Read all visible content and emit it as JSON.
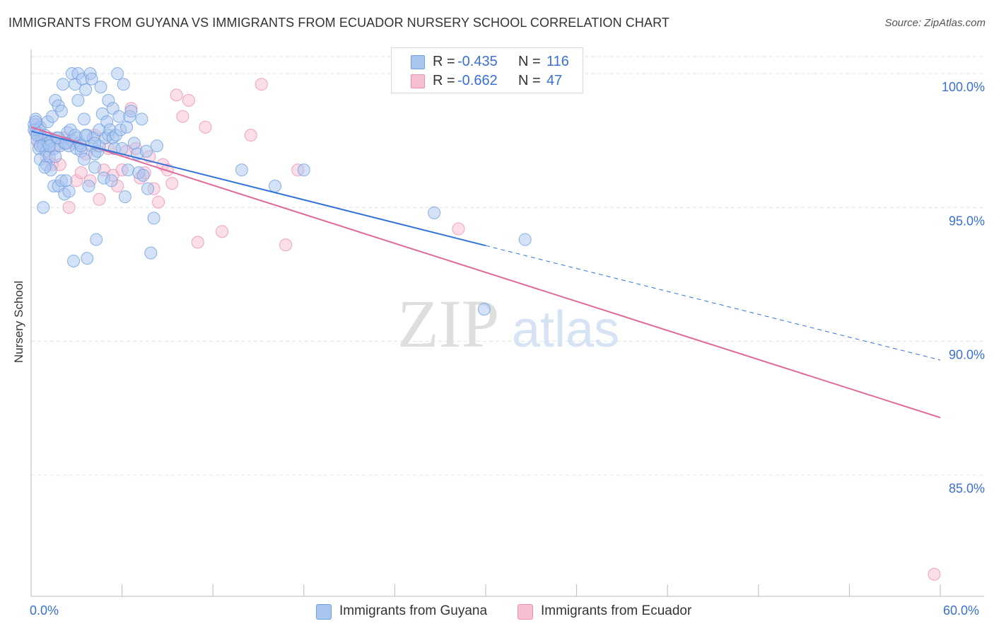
{
  "title": "IMMIGRANTS FROM GUYANA VS IMMIGRANTS FROM ECUADOR NURSERY SCHOOL CORRELATION CHART",
  "source": "Source: ZipAtlas.com",
  "watermark": {
    "zip": "ZIP",
    "atlas": "atlas"
  },
  "legend": {
    "guyana": {
      "r_label": "R =",
      "r_value": "-0.435",
      "n_label": "N =",
      "n_value": "116"
    },
    "ecuador": {
      "r_label": "R =",
      "r_value": "-0.662",
      "n_label": "N =",
      "n_value": "47"
    }
  },
  "colors": {
    "guyana_fill": "#a9c6ef",
    "guyana_stroke": "#6f9fde",
    "guyana_line": "#3373d6",
    "ecuador_fill": "#f6bfd2",
    "ecuador_stroke": "#ec90b2",
    "ecuador_line": "#e0689a",
    "axis_text": "#3b6fd4",
    "grid": "#e4e4e4"
  },
  "chart_data": {
    "type": "scatter",
    "title": "IMMIGRANTS FROM GUYANA VS IMMIGRANTS FROM ECUADOR NURSERY SCHOOL CORRELATION CHART",
    "xlabel": "",
    "ylabel": "Nursery School",
    "xlim": [
      0,
      60
    ],
    "ylim": [
      80.5,
      100.9
    ],
    "x_tick_labels": {
      "min": "0.0%",
      "max": "60.0%"
    },
    "y_ticks": [
      100,
      95,
      90,
      85
    ],
    "y_tick_labels": [
      "100.0%",
      "95.0%",
      "90.0%",
      "85.0%"
    ],
    "legend_position": "top-center",
    "series": [
      {
        "name": "Immigrants from Guyana",
        "r": -0.435,
        "n": 116,
        "trend": {
          "x0": 0,
          "y0": 97.85,
          "x1": 60,
          "y1": 89.3,
          "solid_until_x": 30
        },
        "points": [
          [
            0.2,
            98.1
          ],
          [
            0.3,
            97.8
          ],
          [
            0.3,
            98.3
          ],
          [
            0.4,
            97.5
          ],
          [
            0.5,
            97.9
          ],
          [
            0.5,
            97.2
          ],
          [
            0.6,
            98.0
          ],
          [
            0.6,
            96.8
          ],
          [
            0.7,
            97.6
          ],
          [
            0.8,
            97.3
          ],
          [
            0.8,
            95.0
          ],
          [
            0.9,
            97.7
          ],
          [
            1.0,
            97.1
          ],
          [
            1.0,
            96.6
          ],
          [
            1.1,
            97.4
          ],
          [
            1.1,
            98.2
          ],
          [
            1.2,
            96.9
          ],
          [
            1.3,
            97.5
          ],
          [
            1.3,
            96.4
          ],
          [
            1.4,
            98.4
          ],
          [
            1.5,
            97.2
          ],
          [
            1.5,
            95.8
          ],
          [
            1.6,
            96.9
          ],
          [
            1.6,
            99.0
          ],
          [
            1.7,
            97.6
          ],
          [
            1.8,
            95.8
          ],
          [
            1.8,
            98.8
          ],
          [
            1.9,
            97.3
          ],
          [
            2.0,
            98.6
          ],
          [
            2.0,
            96.0
          ],
          [
            2.1,
            99.6
          ],
          [
            2.2,
            95.5
          ],
          [
            2.2,
            97.4
          ],
          [
            2.3,
            96.0
          ],
          [
            2.4,
            97.8
          ],
          [
            2.5,
            97.3
          ],
          [
            2.5,
            95.6
          ],
          [
            2.6,
            97.9
          ],
          [
            2.7,
            97.5
          ],
          [
            2.7,
            100.0
          ],
          [
            2.8,
            93.0
          ],
          [
            2.9,
            99.6
          ],
          [
            3.0,
            97.2
          ],
          [
            3.0,
            97.6
          ],
          [
            3.1,
            100.0
          ],
          [
            3.1,
            99.0
          ],
          [
            3.2,
            97.4
          ],
          [
            3.3,
            97.1
          ],
          [
            3.3,
            97.3
          ],
          [
            3.4,
            99.8
          ],
          [
            3.5,
            98.3
          ],
          [
            3.5,
            96.8
          ],
          [
            3.6,
            99.4
          ],
          [
            3.7,
            97.7
          ],
          [
            3.7,
            93.1
          ],
          [
            3.8,
            95.8
          ],
          [
            3.9,
            100.0
          ],
          [
            4.0,
            99.8
          ],
          [
            4.0,
            97.3
          ],
          [
            4.1,
            97.6
          ],
          [
            4.2,
            97.0
          ],
          [
            4.2,
            96.5
          ],
          [
            4.3,
            93.8
          ],
          [
            4.4,
            97.1
          ],
          [
            4.5,
            97.9
          ],
          [
            4.5,
            97.3
          ],
          [
            4.6,
            99.5
          ],
          [
            4.7,
            98.5
          ],
          [
            4.8,
            96.1
          ],
          [
            4.9,
            97.6
          ],
          [
            5.0,
            98.2
          ],
          [
            5.1,
            97.7
          ],
          [
            5.1,
            99.0
          ],
          [
            5.2,
            97.9
          ],
          [
            5.3,
            96.0
          ],
          [
            5.4,
            97.6
          ],
          [
            5.4,
            98.7
          ],
          [
            5.5,
            97.2
          ],
          [
            5.6,
            97.7
          ],
          [
            5.7,
            100.0
          ],
          [
            5.8,
            98.4
          ],
          [
            5.9,
            97.9
          ],
          [
            6.0,
            97.2
          ],
          [
            6.1,
            99.6
          ],
          [
            6.2,
            95.4
          ],
          [
            6.3,
            98.0
          ],
          [
            6.4,
            96.4
          ],
          [
            6.5,
            98.4
          ],
          [
            6.6,
            98.6
          ],
          [
            6.8,
            97.4
          ],
          [
            7.0,
            97.0
          ],
          [
            7.1,
            96.3
          ],
          [
            7.3,
            98.3
          ],
          [
            7.4,
            96.2
          ],
          [
            7.6,
            97.1
          ],
          [
            7.7,
            95.7
          ],
          [
            7.9,
            93.3
          ],
          [
            8.1,
            94.6
          ],
          [
            8.3,
            97.3
          ],
          [
            0.2,
            97.9
          ],
          [
            0.3,
            98.2
          ],
          [
            0.4,
            97.7
          ],
          [
            0.6,
            97.3
          ],
          [
            0.9,
            96.5
          ],
          [
            1.2,
            97.3
          ],
          [
            1.8,
            97.6
          ],
          [
            2.3,
            97.4
          ],
          [
            2.9,
            97.7
          ],
          [
            3.6,
            97.7
          ],
          [
            4.2,
            97.4
          ],
          [
            13.9,
            96.4
          ],
          [
            16.1,
            95.8
          ],
          [
            18.0,
            96.4
          ],
          [
            26.6,
            94.8
          ],
          [
            32.6,
            93.8
          ],
          [
            29.9,
            91.2
          ]
        ]
      },
      {
        "name": "Immigrants from Ecuador",
        "r": -0.662,
        "n": 47,
        "trend": {
          "x0": 0,
          "y0": 98.0,
          "x1": 60,
          "y1": 87.15,
          "solid_until_x": 60
        },
        "points": [
          [
            0.3,
            97.9
          ],
          [
            0.4,
            98.1
          ],
          [
            0.5,
            97.4
          ],
          [
            0.6,
            97.7
          ],
          [
            0.8,
            97.5
          ],
          [
            1.0,
            96.9
          ],
          [
            1.2,
            97.6
          ],
          [
            1.4,
            96.6
          ],
          [
            1.7,
            97.3
          ],
          [
            1.9,
            96.6
          ],
          [
            2.2,
            97.6
          ],
          [
            2.5,
            95.0
          ],
          [
            2.8,
            97.4
          ],
          [
            3.0,
            96.0
          ],
          [
            3.3,
            96.3
          ],
          [
            3.6,
            97.0
          ],
          [
            3.9,
            96.0
          ],
          [
            4.2,
            97.7
          ],
          [
            4.5,
            95.3
          ],
          [
            4.8,
            96.4
          ],
          [
            5.1,
            97.2
          ],
          [
            5.4,
            96.2
          ],
          [
            5.7,
            95.8
          ],
          [
            6.0,
            96.4
          ],
          [
            6.3,
            97.1
          ],
          [
            6.6,
            98.7
          ],
          [
            6.9,
            97.2
          ],
          [
            7.2,
            96.1
          ],
          [
            7.5,
            96.3
          ],
          [
            7.8,
            96.9
          ],
          [
            8.1,
            95.7
          ],
          [
            8.4,
            95.2
          ],
          [
            8.7,
            96.6
          ],
          [
            9.0,
            96.4
          ],
          [
            9.3,
            95.9
          ],
          [
            9.6,
            99.2
          ],
          [
            10.0,
            98.4
          ],
          [
            10.4,
            99.0
          ],
          [
            11.0,
            93.7
          ],
          [
            11.5,
            98.0
          ],
          [
            12.6,
            94.1
          ],
          [
            14.5,
            97.7
          ],
          [
            15.2,
            99.6
          ],
          [
            16.8,
            93.6
          ],
          [
            17.6,
            96.4
          ],
          [
            28.2,
            94.2
          ],
          [
            59.6,
            81.3
          ]
        ]
      }
    ]
  },
  "bottom_legend": {
    "guyana": "Immigrants from Guyana",
    "ecuador": "Immigrants from Ecuador"
  }
}
